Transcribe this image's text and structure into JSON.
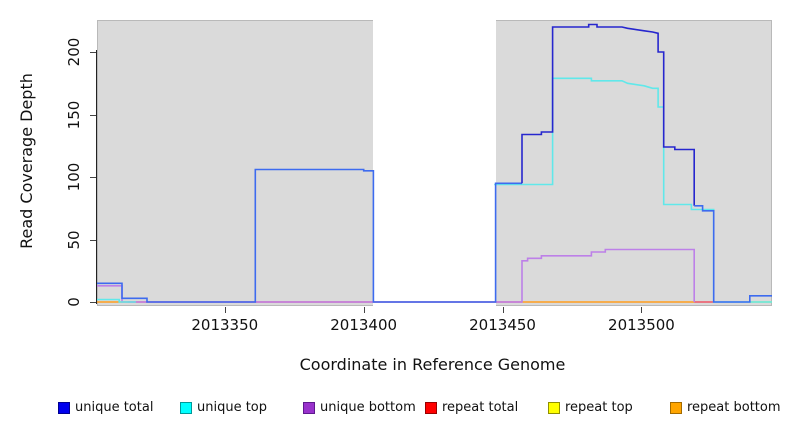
{
  "chart_data": {
    "type": "line",
    "title": "",
    "xlabel": "Coordinate in Reference Genome",
    "ylabel": "Read Coverage Depth",
    "x_range": [
      2013304,
      2013547
    ],
    "y_range": [
      0,
      226
    ],
    "grid": false,
    "plot_background": "#dadada",
    "uncovered_region": {
      "from": 2013403.5,
      "to": 2013447.5,
      "color": "#ffffff"
    },
    "x_ticks": [
      {
        "value": 2013350,
        "label": "2013350"
      },
      {
        "value": 2013400,
        "label": "2013400"
      },
      {
        "value": 2013450,
        "label": "2013450"
      },
      {
        "value": 2013500,
        "label": "2013500"
      }
    ],
    "y_ticks": [
      {
        "value": 0,
        "label": "0"
      },
      {
        "value": 50,
        "label": "50"
      },
      {
        "value": 100,
        "label": "100"
      },
      {
        "value": 150,
        "label": "150"
      },
      {
        "value": 200,
        "label": "200"
      }
    ],
    "series": [
      {
        "name": "repeat top",
        "color": "#e8e84a",
        "segments": [
          {
            "points": [
              [
                2013539,
                0
              ],
              [
                2013547,
                0
              ]
            ]
          }
        ]
      },
      {
        "name": "repeat total",
        "color": "#ee5566",
        "segments": [
          {
            "points": [
              [
                2013315,
                0
              ],
              [
                2013457,
                0
              ]
            ]
          },
          {
            "points": [
              [
                2013519,
                0
              ],
              [
                2013526,
                0
              ]
            ]
          }
        ]
      },
      {
        "name": "repeat bottom",
        "color": "#ff9e20",
        "segments": [
          {
            "points": [
              [
                2013304,
                0
              ],
              [
                2013315,
                0
              ]
            ]
          },
          {
            "points": [
              [
                2013457,
                0
              ],
              [
                2013519,
                0
              ]
            ]
          }
        ]
      },
      {
        "name": "unique bottom",
        "color": "#bd80e8",
        "segments": [
          {
            "points": [
              [
                2013304,
                13
              ],
              [
                2013313,
                13
              ],
              [
                2013313,
                0
              ],
              [
                2013457,
                0
              ],
              [
                2013457,
                33
              ],
              [
                2013459,
                33
              ],
              [
                2013459,
                35
              ],
              [
                2013464,
                35
              ],
              [
                2013464,
                37
              ],
              [
                2013482,
                37
              ],
              [
                2013482,
                40
              ],
              [
                2013487,
                40
              ],
              [
                2013487,
                42
              ],
              [
                2013519,
                42
              ],
              [
                2013519,
                0
              ]
            ]
          }
        ]
      },
      {
        "name": "unique top",
        "color": "#60e8ea",
        "segments": [
          {
            "points": [
              [
                2013304,
                2
              ],
              [
                2013312,
                2
              ],
              [
                2013312,
                0
              ],
              [
                2013318,
                0
              ]
            ]
          },
          {
            "points": [
              [
                2013447,
                94
              ],
              [
                2013468,
                94
              ],
              [
                2013468,
                179
              ],
              [
                2013482,
                179
              ],
              [
                2013482,
                177
              ],
              [
                2013493,
                177
              ],
              [
                2013495,
                175
              ],
              [
                2013501,
                173
              ],
              [
                2013504,
                171
              ],
              [
                2013506,
                171
              ],
              [
                2013506,
                156
              ],
              [
                2013508,
                156
              ],
              [
                2013508,
                78
              ],
              [
                2013518,
                78
              ],
              [
                2013518,
                74
              ],
              [
                2013526,
                74
              ],
              [
                2013526,
                0
              ],
              [
                2013547,
                0
              ]
            ]
          }
        ]
      },
      {
        "name": "unique total",
        "color": "#3d6bef",
        "segments": [
          {
            "points": [
              [
                2013304,
                15
              ],
              [
                2013313,
                15
              ],
              [
                2013313,
                3
              ],
              [
                2013322,
                3
              ],
              [
                2013322,
                0
              ],
              [
                2013361,
                0
              ],
              [
                2013361,
                106
              ],
              [
                2013400,
                106
              ],
              [
                2013400,
                105
              ],
              [
                2013403.5,
                105
              ],
              [
                2013403.5,
                0
              ],
              [
                2013447.5,
                0
              ],
              [
                2013447.5,
                95
              ],
              [
                2013457,
                95
              ]
            ]
          },
          {
            "points": [
              [
                2013457,
                95
              ],
              [
                2013457,
                134
              ],
              [
                2013464,
                134
              ],
              [
                2013464,
                136
              ],
              [
                2013468,
                136
              ],
              [
                2013468,
                220
              ],
              [
                2013481,
                220
              ],
              [
                2013481,
                222
              ],
              [
                2013484,
                222
              ],
              [
                2013484,
                220
              ],
              [
                2013493,
                220
              ],
              [
                2013495,
                219
              ],
              [
                2013501,
                217
              ],
              [
                2013504,
                216
              ],
              [
                2013506,
                215
              ],
              [
                2013506,
                200
              ],
              [
                2013508,
                200
              ],
              [
                2013508,
                124
              ],
              [
                2013512,
                124
              ],
              [
                2013512,
                122
              ],
              [
                2013519,
                122
              ],
              [
                2013519,
                77
              ]
            ],
            "color": "#2626ce"
          },
          {
            "points": [
              [
                2013519,
                77
              ],
              [
                2013522,
                77
              ],
              [
                2013522,
                73
              ],
              [
                2013526,
                73
              ],
              [
                2013526,
                0
              ],
              [
                2013539,
                0
              ],
              [
                2013539,
                5
              ],
              [
                2013547,
                5
              ]
            ]
          }
        ]
      }
    ],
    "legend": {
      "position": "bottom",
      "items": [
        {
          "label": "unique total",
          "fill": "#0000ee",
          "border": "#000090"
        },
        {
          "label": "unique top",
          "fill": "#00ffff",
          "border": "#009999"
        },
        {
          "label": "unique bottom",
          "fill": "#9932cc",
          "border": "#5e1a8e"
        },
        {
          "label": "repeat total",
          "fill": "#ff0000",
          "border": "#990000"
        },
        {
          "label": "repeat top",
          "fill": "#ffff00",
          "border": "#909000"
        },
        {
          "label": "repeat bottom",
          "fill": "#ffa500",
          "border": "#a36a00"
        }
      ]
    }
  }
}
